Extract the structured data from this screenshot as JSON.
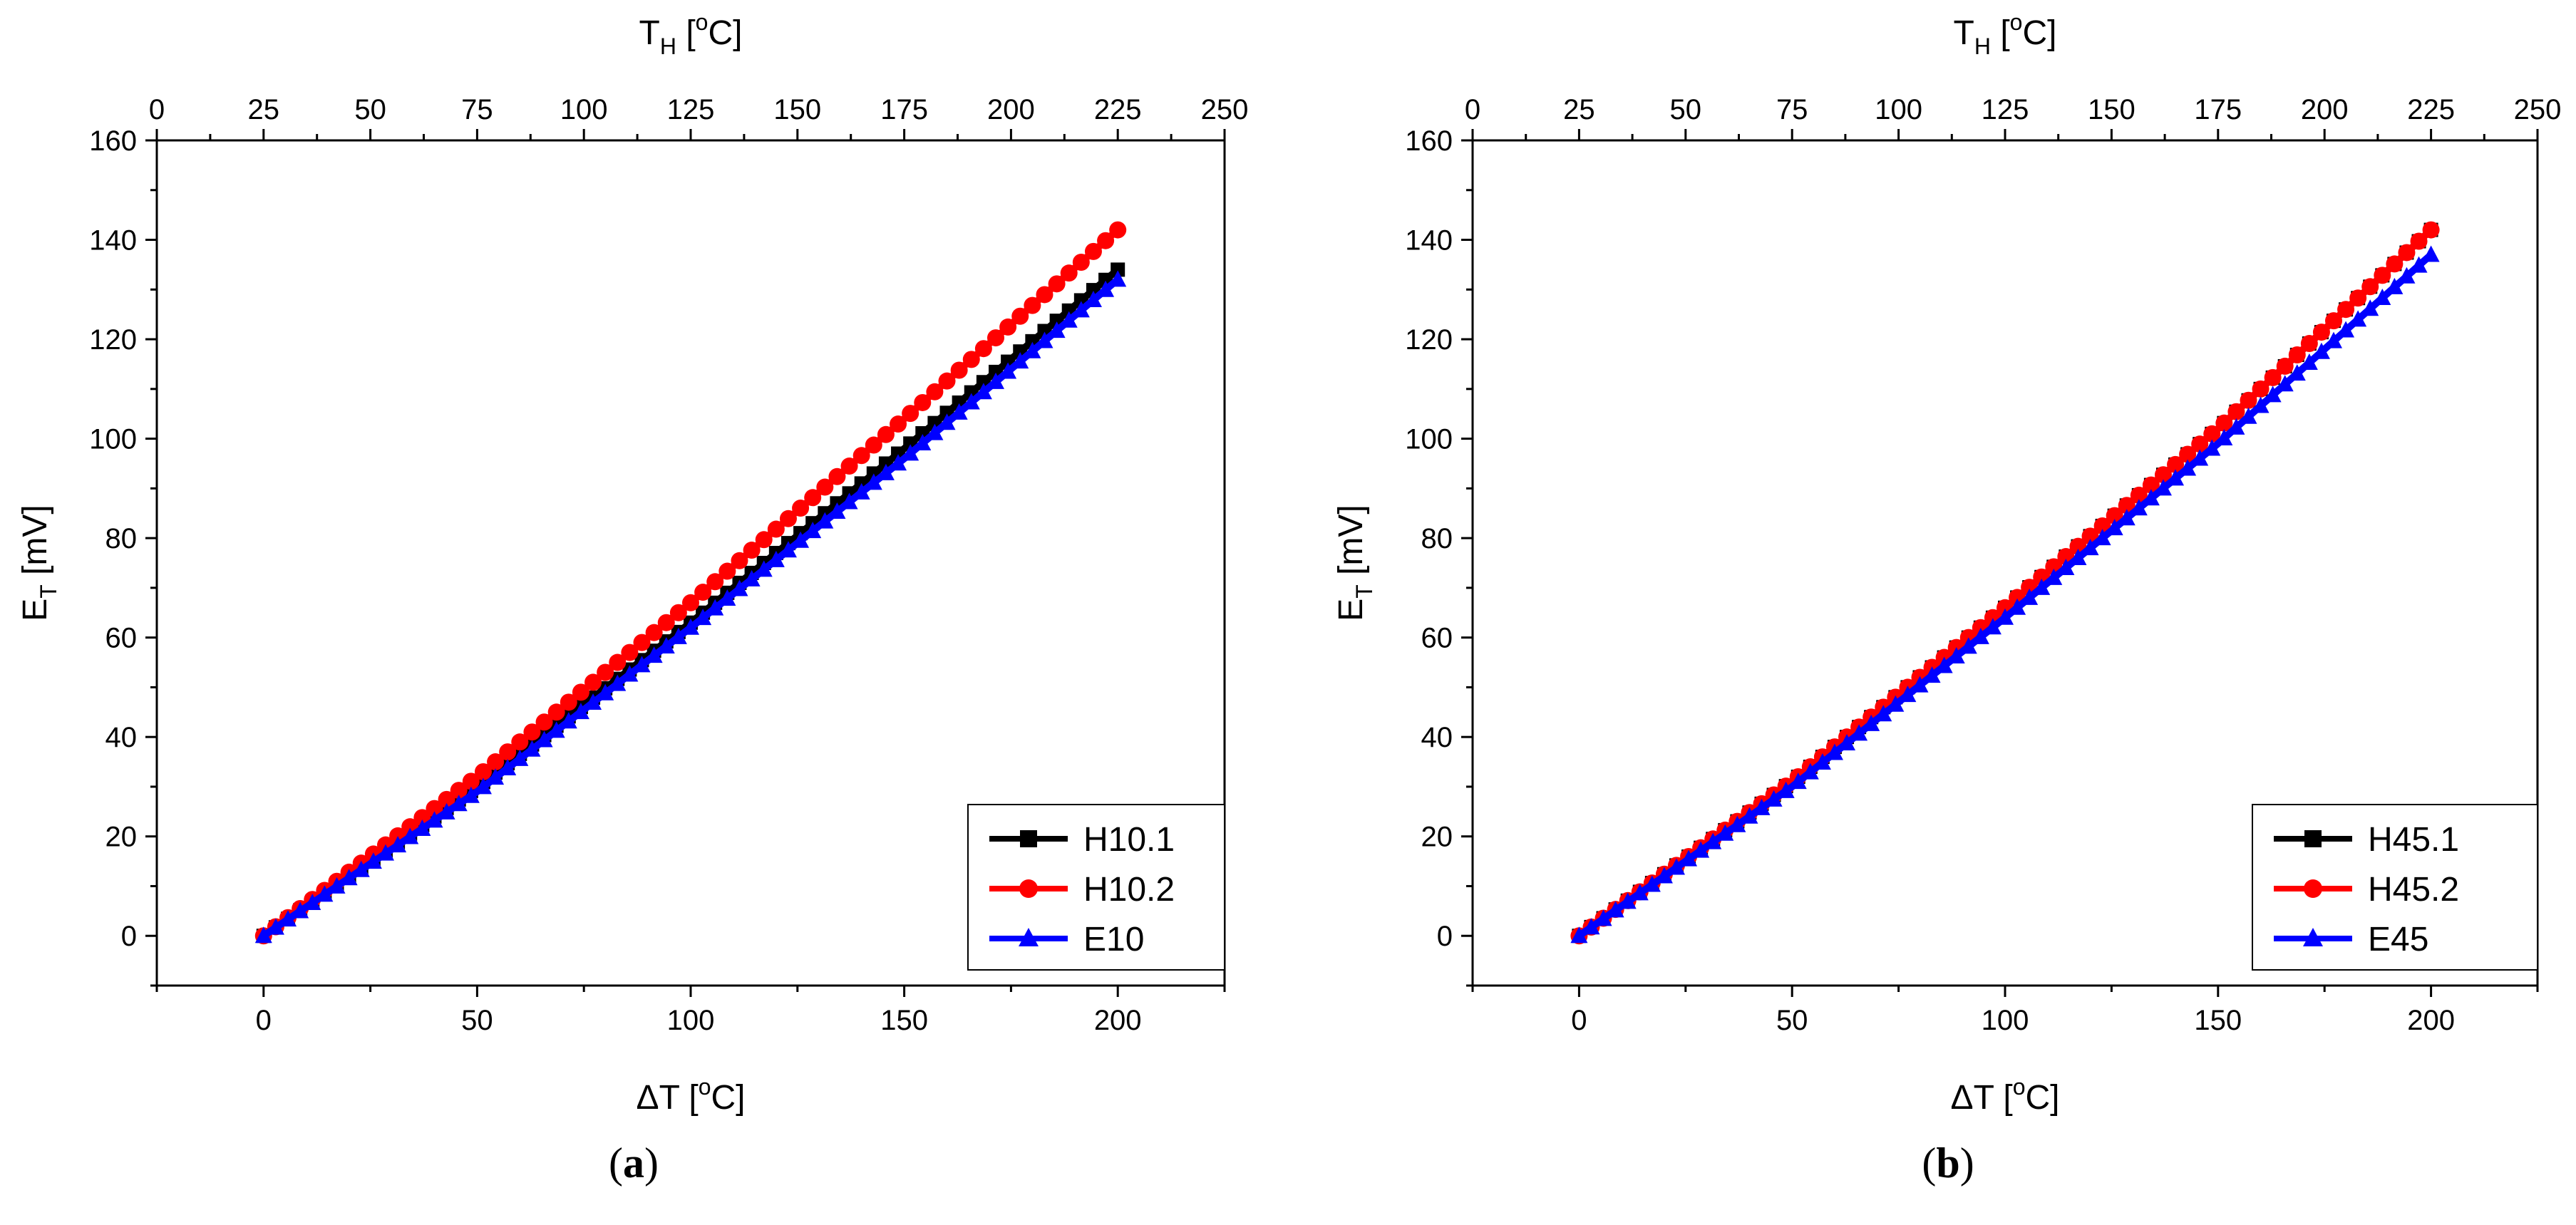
{
  "chart_data": [
    {
      "type": "scatter",
      "panel_label": {
        "open": "(",
        "letter": "a",
        "close": ")"
      },
      "xlabel": {
        "pre": "ΔT [",
        "sup": "o",
        "post": "C]"
      },
      "ylabel": {
        "main": "E",
        "sub": "T",
        "post": " [mV]"
      },
      "top_xlabel": {
        "main": "T",
        "sub": "H",
        "pre": " [",
        "sup": "o",
        "post": "C]"
      },
      "xlim": [
        -25,
        225
      ],
      "ylim": [
        -10,
        160
      ],
      "top_xlim": [
        0,
        250
      ],
      "xticks": [
        0,
        50,
        100,
        150,
        200
      ],
      "yticks": [
        0,
        20,
        40,
        60,
        80,
        100,
        120,
        140,
        160
      ],
      "top_xticks": [
        0,
        25,
        50,
        75,
        100,
        125,
        150,
        175,
        200,
        225,
        250
      ],
      "legend_position": "bottom-right",
      "series": [
        {
          "name": "H10.1",
          "color": "#000000",
          "marker": "square",
          "x": [
            0,
            50,
            100,
            150,
            200
          ],
          "y": [
            0,
            30,
            63,
            98,
            134
          ]
        },
        {
          "name": "H10.2",
          "color": "#ff0000",
          "marker": "circle",
          "x": [
            0,
            50,
            100,
            150,
            200
          ],
          "y": [
            0,
            32,
            67,
            104,
            142
          ]
        },
        {
          "name": "E10",
          "color": "#0000ff",
          "marker": "triangle",
          "x": [
            0,
            50,
            100,
            150,
            200
          ],
          "y": [
            0,
            29,
            62,
            96,
            132
          ]
        }
      ]
    },
    {
      "type": "scatter",
      "panel_label": {
        "open": "(",
        "letter": "b",
        "close": ")"
      },
      "xlabel": {
        "pre": "ΔT [",
        "sup": "o",
        "post": "C]"
      },
      "ylabel": {
        "main": "E",
        "sub": "T",
        "post": " [mV]"
      },
      "top_xlabel": {
        "main": "T",
        "sub": "H",
        "pre": " [",
        "sup": "o",
        "post": "C]"
      },
      "xlim": [
        -25,
        225
      ],
      "ylim": [
        -10,
        160
      ],
      "top_xlim": [
        0,
        250
      ],
      "xticks": [
        0,
        50,
        100,
        150,
        200
      ],
      "yticks": [
        0,
        20,
        40,
        60,
        80,
        100,
        120,
        140,
        160
      ],
      "top_xticks": [
        0,
        25,
        50,
        75,
        100,
        125,
        150,
        175,
        200,
        225,
        250
      ],
      "legend_position": "bottom-right",
      "series": [
        {
          "name": "H45.1",
          "color": "#000000",
          "marker": "square",
          "x": [
            0,
            50,
            100,
            150,
            200
          ],
          "y": [
            0,
            31,
            66,
            102,
            142
          ]
        },
        {
          "name": "H45.2",
          "color": "#ff0000",
          "marker": "circle",
          "x": [
            0,
            50,
            100,
            150,
            200
          ],
          "y": [
            0,
            31,
            66,
            102,
            142
          ]
        },
        {
          "name": "E45",
          "color": "#0000ff",
          "marker": "triangle",
          "x": [
            0,
            50,
            100,
            150,
            200
          ],
          "y": [
            0,
            30,
            64,
            99,
            137
          ]
        }
      ]
    }
  ]
}
